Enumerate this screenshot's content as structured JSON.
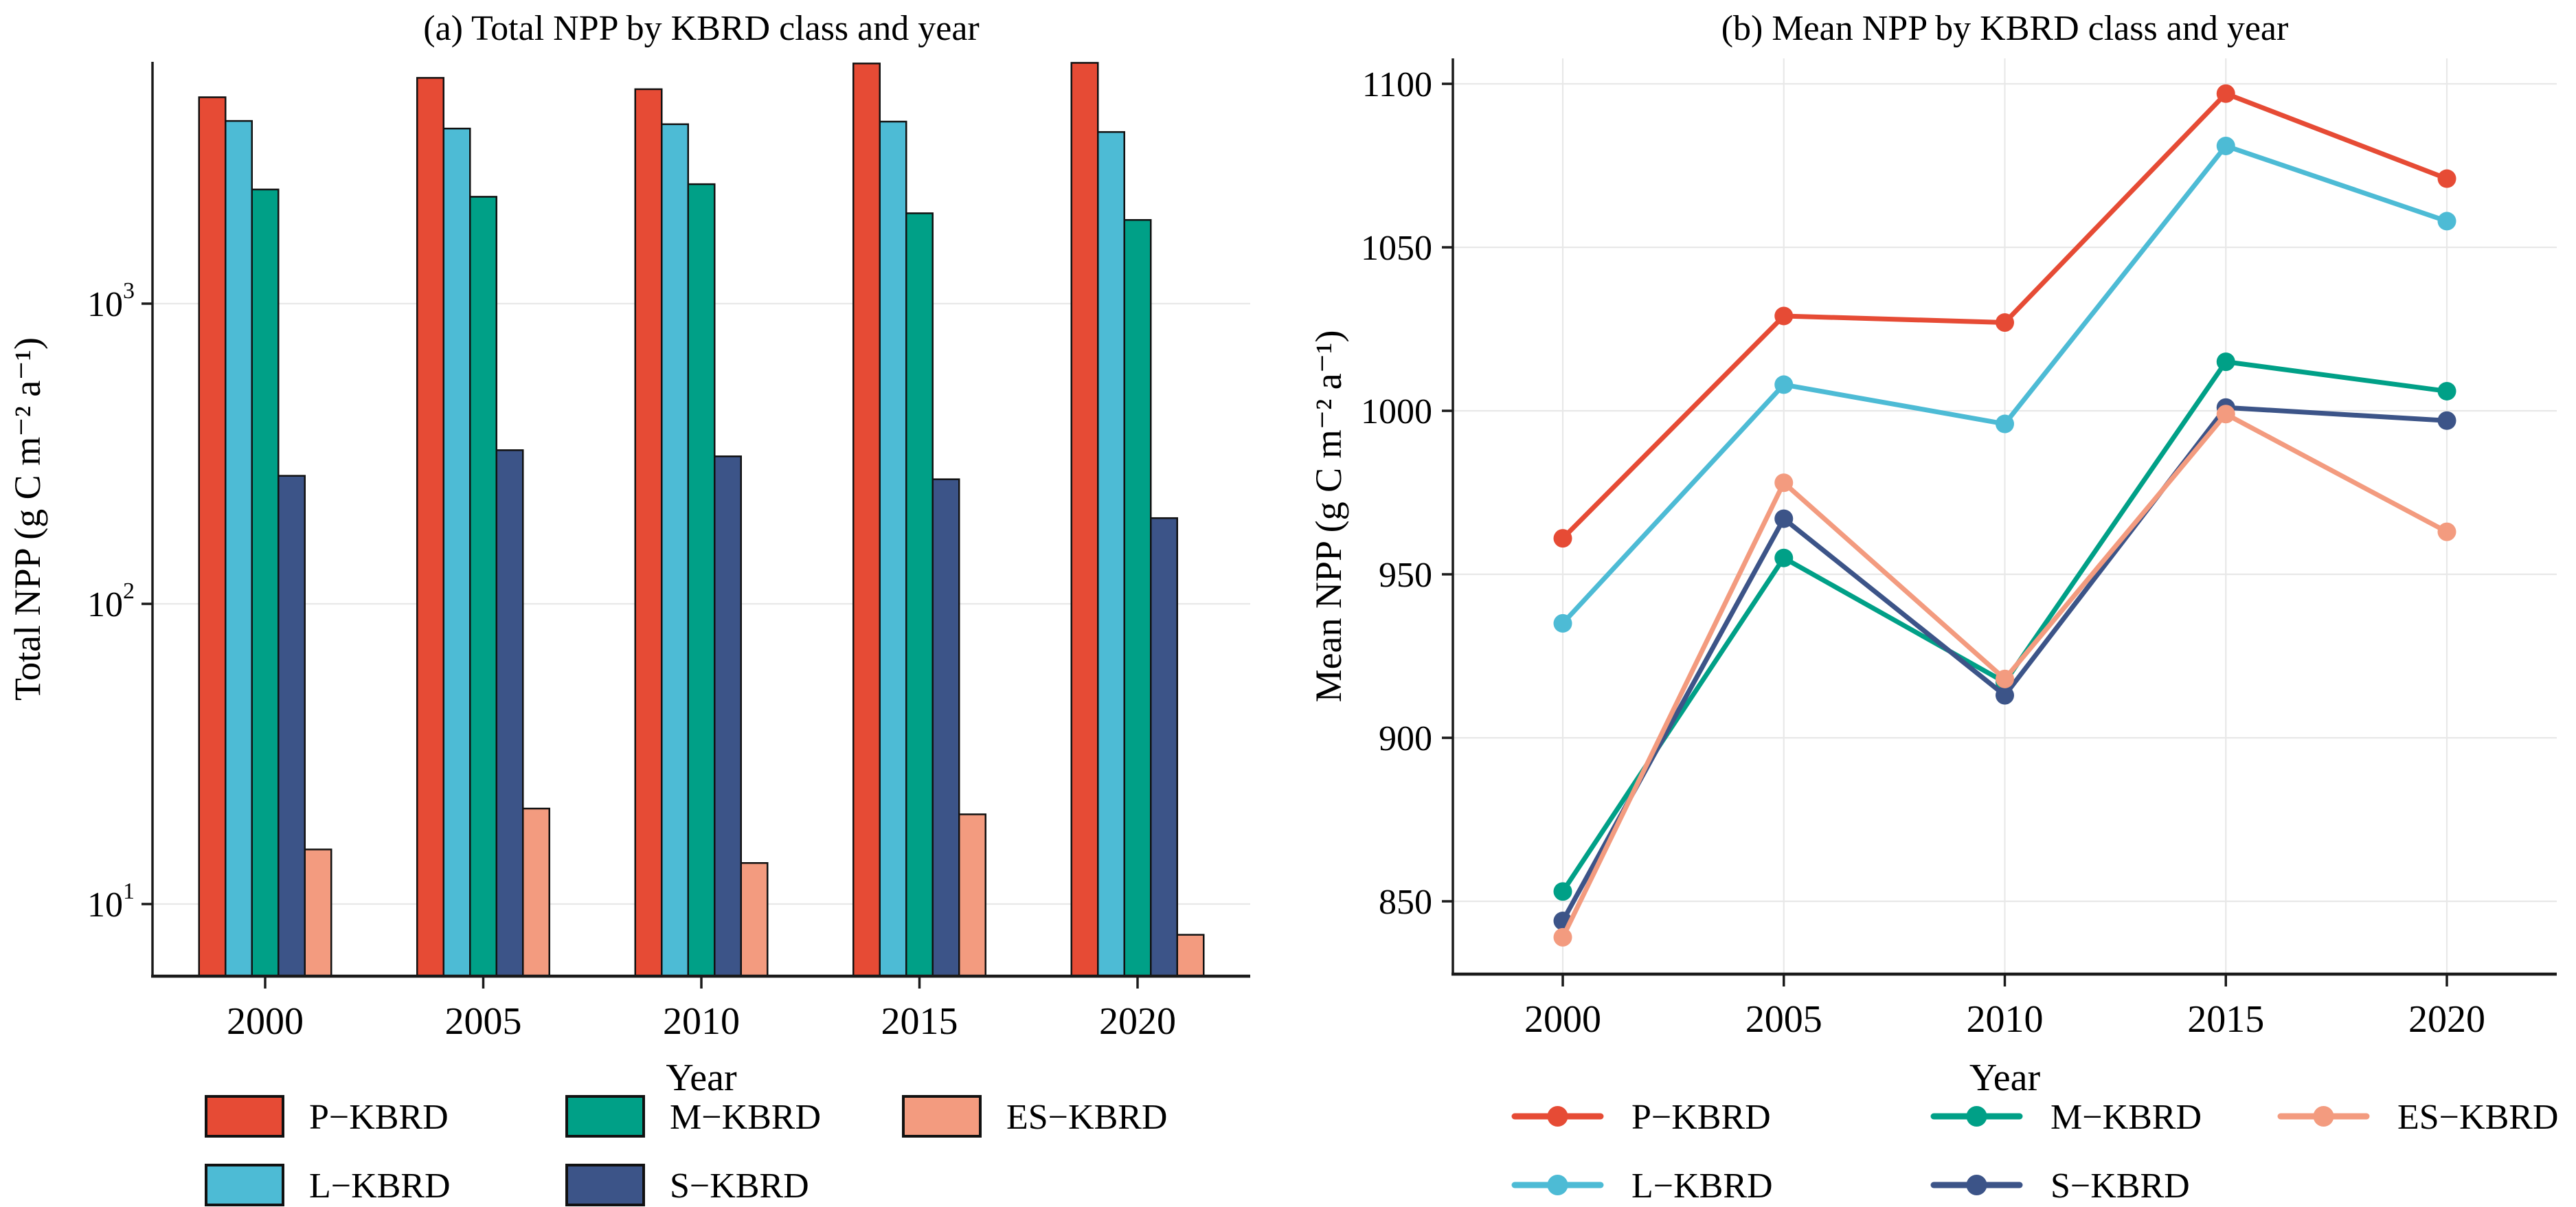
{
  "styles": {
    "background": "#ffffff",
    "grid_color": "#e8e8e8",
    "axis_color": "#1a1a1a",
    "text_color": "#000000",
    "bar_edge_color": "#111111"
  },
  "chart_data": [
    {
      "id": "a",
      "type": "bar",
      "title": "(a) Total NPP by KBRD class and year",
      "xlabel": "Year",
      "ylabel": "Total NPP (g C m⁻² a⁻¹)",
      "categories": [
        "2000",
        "2005",
        "2010",
        "2015",
        "2020"
      ],
      "series": [
        {
          "name": "P−KBRD",
          "color": "#E64B35",
          "values": [
            4870,
            5650,
            5180,
            6310,
            6340
          ]
        },
        {
          "name": "L−KBRD",
          "color": "#4DBBD5",
          "values": [
            4060,
            3830,
            3960,
            4040,
            3730
          ]
        },
        {
          "name": "M−KBRD",
          "color": "#00A087",
          "values": [
            2400,
            2270,
            2500,
            2000,
            1900
          ]
        },
        {
          "name": "S−KBRD",
          "color": "#3C5488",
          "values": [
            267,
            325,
            310,
            260,
            193
          ]
        },
        {
          "name": "ES−KBRD",
          "color": "#F39B7F",
          "values": [
            15.2,
            20.8,
            13.7,
            19.9,
            7.9
          ]
        }
      ],
      "yscale": "log",
      "ylim": [
        6.3,
        6500
      ],
      "ytick_exponents": [
        1,
        2,
        3
      ],
      "grid": "horizontal",
      "legend_position": "bottom"
    },
    {
      "id": "b",
      "type": "line",
      "title": "(b) Mean NPP by KBRD class and year",
      "xlabel": "Year",
      "ylabel": "Mean NPP (g C m⁻² a⁻¹)",
      "categories": [
        "2000",
        "2005",
        "2010",
        "2015",
        "2020"
      ],
      "series": [
        {
          "name": "P−KBRD",
          "color": "#E64B35",
          "values": [
            961,
            1029,
            1027,
            1097,
            1071
          ]
        },
        {
          "name": "L−KBRD",
          "color": "#4DBBD5",
          "values": [
            935,
            1008,
            996,
            1081,
            1058
          ]
        },
        {
          "name": "M−KBRD",
          "color": "#00A087",
          "values": [
            853,
            955,
            917,
            1015,
            1006
          ]
        },
        {
          "name": "S−KBRD",
          "color": "#3C5488",
          "values": [
            844,
            967,
            913,
            1001,
            997
          ]
        },
        {
          "name": "ES−KBRD",
          "color": "#F39B7F",
          "values": [
            839,
            978,
            918,
            999,
            963
          ]
        }
      ],
      "yscale": "linear",
      "ylim": [
        828,
        1106
      ],
      "yticks": [
        850,
        900,
        950,
        1000,
        1050,
        1100
      ],
      "grid": "both",
      "marker": "circle",
      "legend_position": "bottom"
    }
  ]
}
